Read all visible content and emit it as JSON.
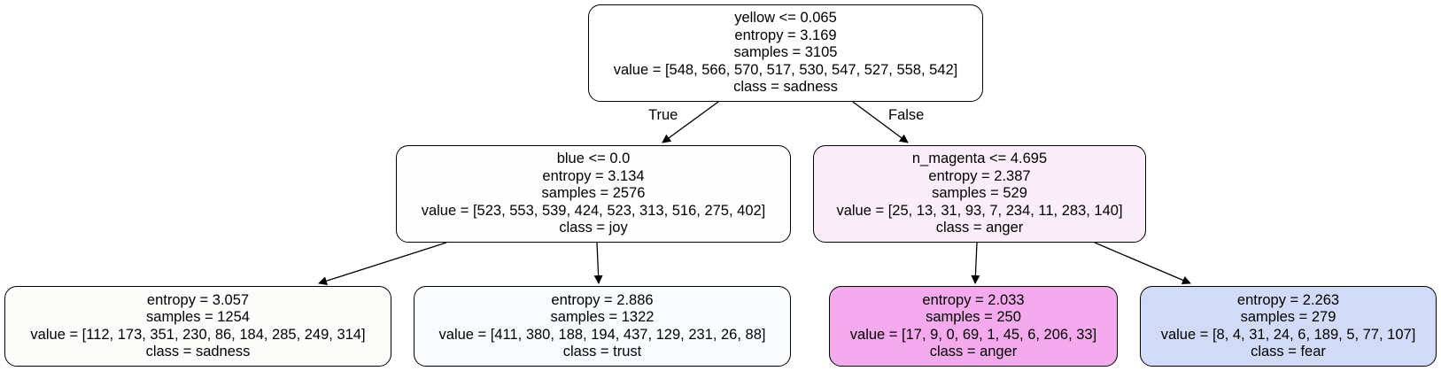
{
  "nodes": {
    "root": {
      "split": "yellow <= 0.065",
      "entropy": "entropy = 3.169",
      "samples": "samples = 3105",
      "value": "value = [548, 566, 570, 517, 530, 547, 527, 558, 542]",
      "class": "class = sadness",
      "fill": "#ffffff"
    },
    "left": {
      "split": "blue <= 0.0",
      "entropy": "entropy = 3.134",
      "samples": "samples = 2576",
      "value": "value = [523, 553, 539, 424, 523, 313, 516, 275, 402]",
      "class": "class = joy",
      "fill": "#fefefe"
    },
    "right": {
      "split": "n_magenta <= 4.695",
      "entropy": "entropy = 2.387",
      "samples": "samples = 529",
      "value": "value = [25, 13, 31, 93, 7, 234, 11, 283, 140]",
      "class": "class = anger",
      "fill": "#fbeefa"
    },
    "left_left": {
      "entropy": "entropy = 3.057",
      "samples": "samples = 1254",
      "value": "value = [112, 173, 351, 230, 86, 184, 285, 249, 314]",
      "class": "class = sadness",
      "fill": "#fcfdfb"
    },
    "left_right": {
      "entropy": "entropy = 2.886",
      "samples": "samples = 1322",
      "value": "value = [411, 380, 188, 194, 437, 129, 231, 26, 88]",
      "class": "class = trust",
      "fill": "#f8fcfe"
    },
    "right_left": {
      "entropy": "entropy = 2.033",
      "samples": "samples = 250",
      "value": "value = [17, 9, 0, 69, 1, 45, 6, 206, 33]",
      "class": "class = anger",
      "fill": "#f4aaec"
    },
    "right_right": {
      "entropy": "entropy = 2.263",
      "samples": "samples = 279",
      "value": "value = [8, 4, 31, 24, 6, 189, 5, 77, 107]",
      "class": "class = fear",
      "fill": "#d1dbf7"
    }
  },
  "edge_labels": {
    "true": "True",
    "false": "False"
  }
}
